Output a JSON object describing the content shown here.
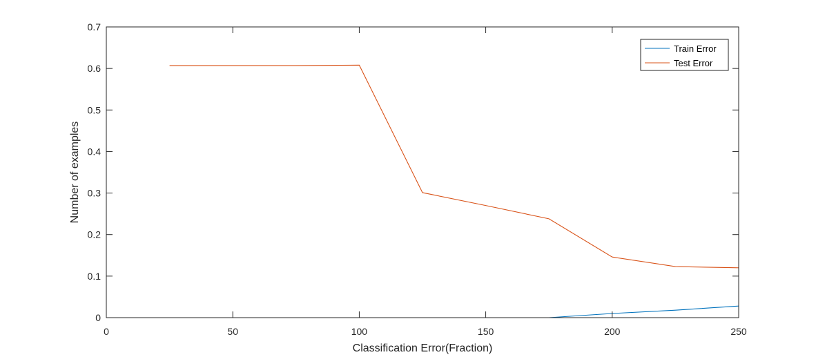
{
  "chart_data": {
    "type": "line",
    "xlabel": "Classification Error(Fraction)",
    "ylabel": "Number of examples",
    "xlim": [
      0,
      250
    ],
    "ylim": [
      0,
      0.7
    ],
    "xticks": [
      0,
      50,
      100,
      150,
      200,
      250
    ],
    "yticks": [
      0,
      0.1,
      0.2,
      0.3,
      0.4,
      0.5,
      0.6,
      0.7
    ],
    "grid": false,
    "legend_position": "top-right",
    "x": [
      25,
      50,
      75,
      100,
      125,
      150,
      175,
      200,
      225,
      250
    ],
    "series": [
      {
        "name": "Train Error",
        "color": "#0072BD",
        "values": [
          0,
          0,
          0,
          0,
          0,
          0,
          0,
          0.01,
          0.018,
          0.028
        ]
      },
      {
        "name": "Test Error",
        "color": "#D95319",
        "values": [
          0.607,
          0.607,
          0.607,
          0.608,
          0.301,
          0.27,
          0.238,
          0.146,
          0.123,
          0.12
        ]
      }
    ]
  }
}
